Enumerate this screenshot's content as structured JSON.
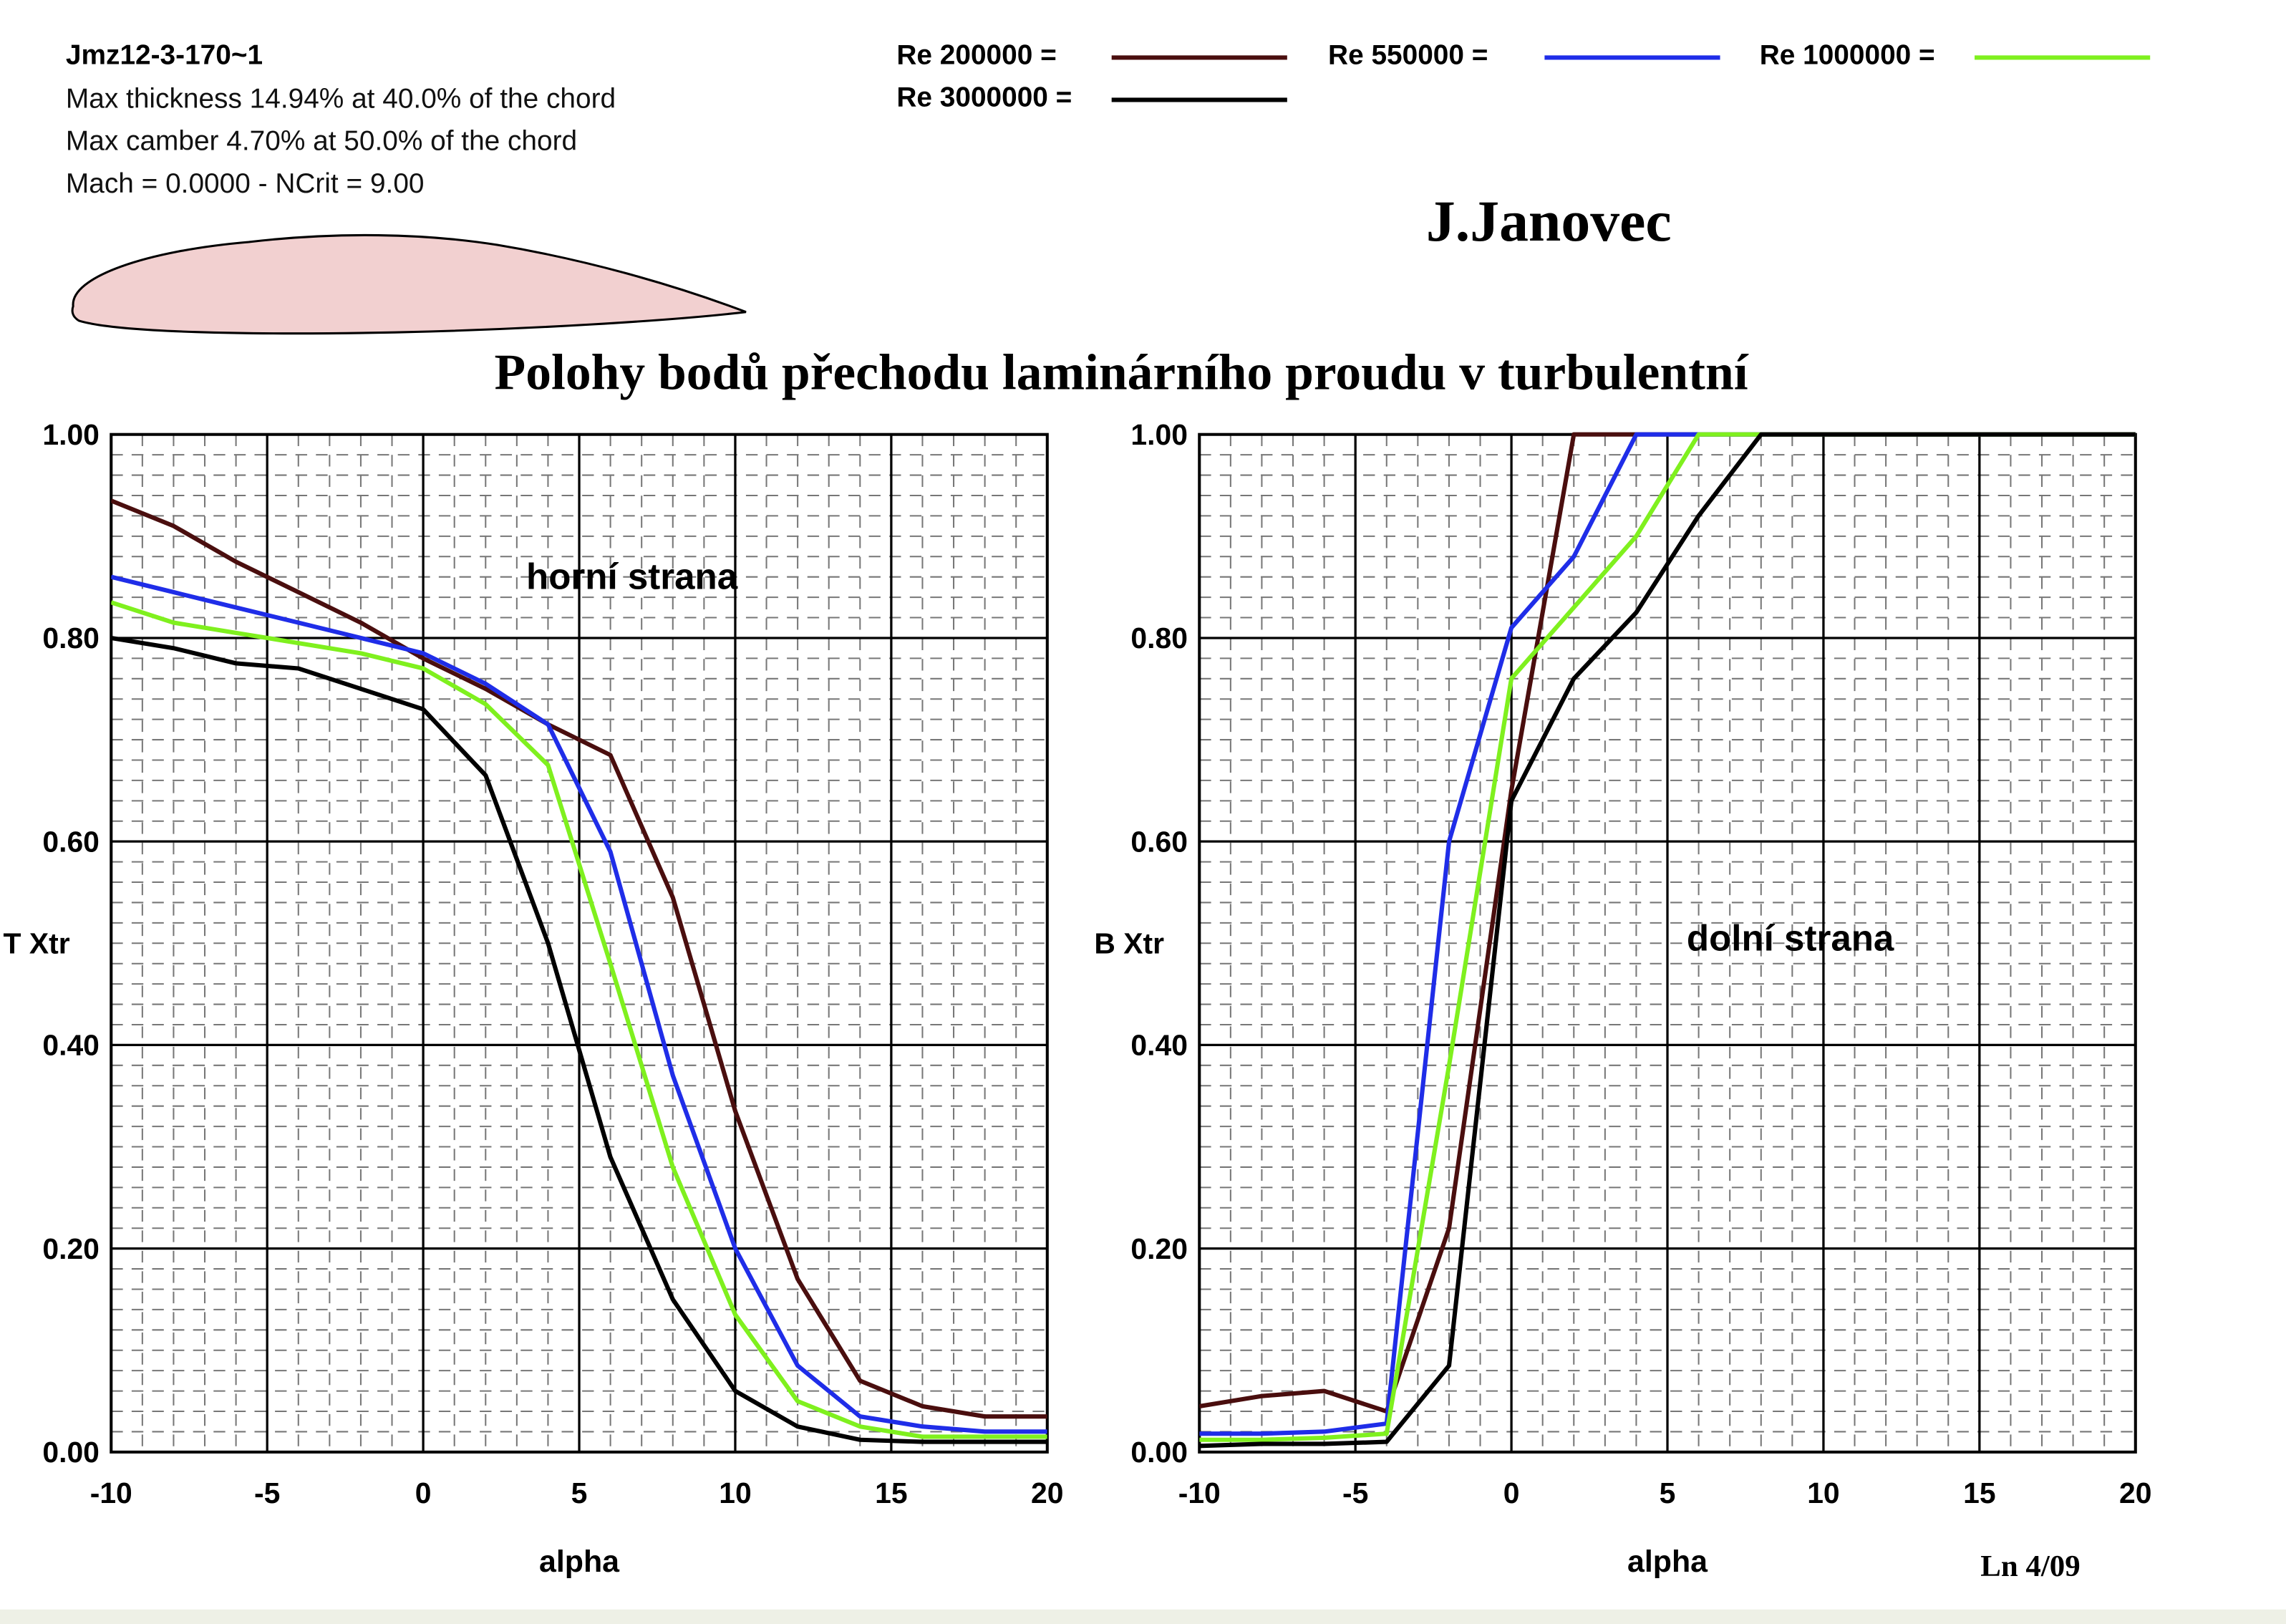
{
  "header": {
    "airfoil_name": "Jmz12-3-170~1",
    "thickness_line": "Max thickness 14.94% at 40.0% of the chord",
    "camber_line": "Max camber 4.70% at 50.0% of the chord",
    "mach_line": "Mach = 0.0000 - NCrit = 9.00",
    "author": "J.Janovec",
    "title": "Polohy bodů přechodu laminárního proudu v turbulentní",
    "footnote": "Ln 4/09"
  },
  "legend": [
    {
      "label": "Re 200000 =",
      "color": "#4a0e0e"
    },
    {
      "label": "Re 550000 =",
      "color": "#1f2de8"
    },
    {
      "label": "Re 1000000 =",
      "color": "#7ff01e"
    },
    {
      "label": "Re 3000000 =",
      "color": "#000000"
    }
  ],
  "airfoil_fill": "#f2d0d0",
  "chart_data": [
    {
      "type": "line",
      "annotation": "horní strana",
      "xlabel": "alpha",
      "ylabel": "T Xtr",
      "xlim": [
        -10,
        20
      ],
      "ylim": [
        0,
        1
      ],
      "xticks": [
        "-10",
        "-5",
        "0",
        "5",
        "10",
        "15",
        "20"
      ],
      "yticks": [
        "0.00",
        "0.20",
        "0.40",
        "0.60",
        "0.80",
        "1.00"
      ],
      "grid": true,
      "series": [
        {
          "name": "Re 200000",
          "color": "#4a0e0e",
          "x": [
            -10,
            -8,
            -6,
            -4,
            -2,
            0,
            2,
            4,
            6,
            8,
            10,
            12,
            14,
            16,
            18,
            20
          ],
          "y": [
            0.935,
            0.91,
            0.875,
            0.845,
            0.815,
            0.78,
            0.75,
            0.715,
            0.685,
            0.545,
            0.335,
            0.17,
            0.07,
            0.045,
            0.035,
            0.035
          ]
        },
        {
          "name": "Re 550000",
          "color": "#1f2de8",
          "x": [
            -10,
            -8,
            -6,
            -4,
            -2,
            0,
            2,
            4,
            6,
            8,
            10,
            12,
            14,
            16,
            18,
            20
          ],
          "y": [
            0.86,
            0.845,
            0.83,
            0.815,
            0.8,
            0.785,
            0.755,
            0.715,
            0.59,
            0.37,
            0.2,
            0.085,
            0.035,
            0.025,
            0.02,
            0.02
          ]
        },
        {
          "name": "Re 1000000",
          "color": "#7ff01e",
          "x": [
            -10,
            -8,
            -6,
            -4,
            -2,
            0,
            2,
            4,
            6,
            8,
            10,
            12,
            14,
            16,
            18,
            20
          ],
          "y": [
            0.835,
            0.815,
            0.805,
            0.795,
            0.785,
            0.77,
            0.735,
            0.675,
            0.48,
            0.28,
            0.135,
            0.05,
            0.025,
            0.015,
            0.015,
            0.015
          ]
        },
        {
          "name": "Re 3000000",
          "color": "#000000",
          "x": [
            -10,
            -8,
            -6,
            -4,
            -2,
            0,
            2,
            4,
            6,
            8,
            10,
            12,
            14,
            16,
            18,
            20
          ],
          "y": [
            0.8,
            0.79,
            0.775,
            0.77,
            0.75,
            0.73,
            0.665,
            0.5,
            0.29,
            0.15,
            0.06,
            0.025,
            0.012,
            0.01,
            0.01,
            0.01
          ]
        }
      ]
    },
    {
      "type": "line",
      "annotation": "dolní strana",
      "xlabel": "alpha",
      "ylabel": "B Xtr",
      "xlim": [
        -10,
        20
      ],
      "ylim": [
        0,
        1
      ],
      "xticks": [
        "-10",
        "-5",
        "0",
        "5",
        "10",
        "15",
        "20"
      ],
      "yticks": [
        "0.00",
        "0.20",
        "0.40",
        "0.60",
        "0.80",
        "1.00"
      ],
      "grid": true,
      "series": [
        {
          "name": "Re 200000",
          "color": "#4a0e0e",
          "x": [
            -10,
            -8,
            -6,
            -4,
            -2,
            0,
            2,
            4,
            6,
            8,
            10,
            12,
            14,
            16,
            18,
            20
          ],
          "y": [
            0.045,
            0.055,
            0.06,
            0.04,
            0.22,
            0.65,
            1.0,
            1.0,
            1.0,
            1.0,
            1.0,
            1.0,
            1.0,
            1.0,
            1.0,
            1.0
          ]
        },
        {
          "name": "Re 550000",
          "color": "#1f2de8",
          "x": [
            -10,
            -8,
            -6,
            -4,
            -2,
            0,
            2,
            4,
            6,
            8,
            10,
            12,
            14,
            16,
            18,
            20
          ],
          "y": [
            0.018,
            0.018,
            0.02,
            0.028,
            0.6,
            0.81,
            0.88,
            1.0,
            1.0,
            1.0,
            1.0,
            1.0,
            1.0,
            1.0,
            1.0,
            1.0
          ]
        },
        {
          "name": "Re 1000000",
          "color": "#7ff01e",
          "x": [
            -10,
            -8,
            -6,
            -4,
            -2,
            0,
            2,
            4,
            6,
            8,
            10,
            12,
            14,
            16,
            18,
            20
          ],
          "y": [
            0.012,
            0.012,
            0.014,
            0.018,
            0.38,
            0.76,
            0.83,
            0.9,
            1.0,
            1.0,
            1.0,
            1.0,
            1.0,
            1.0,
            1.0,
            1.0
          ]
        },
        {
          "name": "Re 3000000",
          "color": "#000000",
          "x": [
            -10,
            -8,
            -6,
            -4,
            -2,
            0,
            2,
            4,
            6,
            8,
            10,
            12,
            14,
            16,
            18,
            20
          ],
          "y": [
            0.006,
            0.008,
            0.008,
            0.01,
            0.085,
            0.64,
            0.76,
            0.825,
            0.92,
            1.0,
            1.0,
            1.0,
            1.0,
            1.0,
            1.0,
            1.0
          ]
        }
      ]
    }
  ]
}
